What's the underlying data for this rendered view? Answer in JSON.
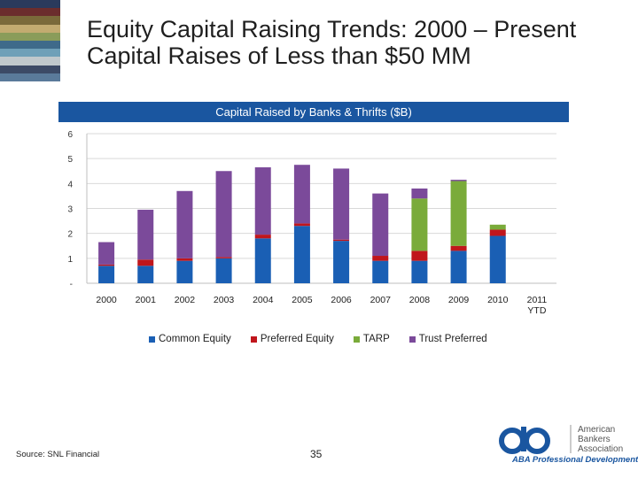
{
  "slide": {
    "title_line1": "Equity Capital Raising Trends: 2000 – Present",
    "title_line2": "Capital Raises of Less than $50 MM",
    "source": "Source: SNL Financial",
    "page_number": "35",
    "logo": {
      "line1": "American",
      "line2": "Bankers",
      "line3": "Association",
      "subtitle": "ABA Professional Development"
    },
    "stripe_colors": [
      "#2a3a5c",
      "#6b2d2d",
      "#7a6a3a",
      "#c2ab70",
      "#8a9c5a",
      "#3f6a8a",
      "#6fa0b8",
      "#c0c8cc",
      "#3c4a66",
      "#5a7a9a"
    ]
  },
  "chart_data": {
    "type": "bar",
    "stacked": true,
    "title": "Capital Raised by Banks & Thrifts ($B)",
    "xlabel": "",
    "ylabel": "",
    "ylim": [
      0,
      6
    ],
    "yticks": [
      "-",
      "1",
      "2",
      "3",
      "4",
      "5",
      "6"
    ],
    "categories": [
      "2000",
      "2001",
      "2002",
      "2003",
      "2004",
      "2005",
      "2006",
      "2007",
      "2008",
      "2009",
      "2010",
      "2011 YTD"
    ],
    "category_labels": [
      [
        "2000"
      ],
      [
        "2001"
      ],
      [
        "2002"
      ],
      [
        "2003"
      ],
      [
        "2004"
      ],
      [
        "2005"
      ],
      [
        "2006"
      ],
      [
        "2007"
      ],
      [
        "2008"
      ],
      [
        "2009"
      ],
      [
        "2010"
      ],
      [
        "2011",
        "YTD"
      ]
    ],
    "series": [
      {
        "name": "Common Equity",
        "color": "#1a5fb4",
        "values": [
          0.7,
          0.7,
          0.9,
          1.0,
          1.8,
          2.3,
          1.7,
          0.9,
          0.9,
          1.3,
          1.9,
          0.0
        ]
      },
      {
        "name": "Preferred Equity",
        "color": "#c0161c",
        "values": [
          0.05,
          0.25,
          0.1,
          0.05,
          0.15,
          0.1,
          0.05,
          0.2,
          0.4,
          0.2,
          0.25,
          0.0
        ]
      },
      {
        "name": "TARP",
        "color": "#7aab3a",
        "values": [
          0.0,
          0.0,
          0.0,
          0.0,
          0.0,
          0.0,
          0.0,
          0.0,
          2.1,
          2.6,
          0.2,
          0.0
        ]
      },
      {
        "name": "Trust Preferred",
        "color": "#7b4a9a",
        "values": [
          0.9,
          2.0,
          2.7,
          3.45,
          2.7,
          2.35,
          2.85,
          2.5,
          0.4,
          0.05,
          0.0,
          0.0
        ]
      }
    ],
    "grid": true,
    "legend_position": "bottom"
  }
}
